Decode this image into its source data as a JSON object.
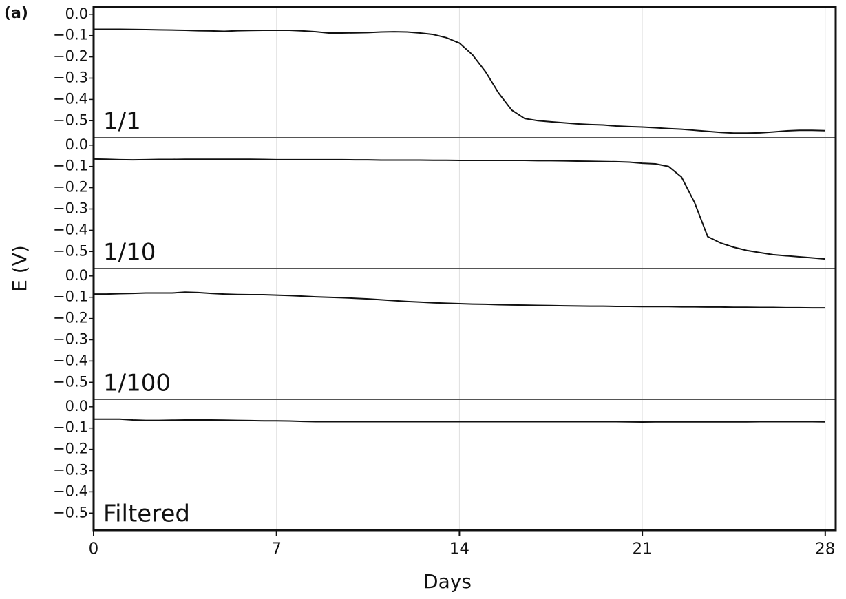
{
  "chart_data": {
    "type": "line",
    "title": "(a)",
    "xlabel": "Days",
    "ylabel": "E (V)",
    "xlim": [
      0,
      28.4
    ],
    "xticks": [
      0,
      7,
      14,
      21,
      28
    ],
    "ylim": [
      -0.58,
      0.035
    ],
    "yticks": [
      {
        "value": 0,
        "label": "0.0"
      },
      {
        "value": -0.1,
        "label": "−0.1"
      },
      {
        "value": -0.2,
        "label": "−0.2"
      },
      {
        "value": -0.3,
        "label": "−0.3"
      },
      {
        "value": -0.4,
        "label": "−0.4"
      },
      {
        "value": -0.5,
        "label": "−0.5"
      }
    ],
    "grid": true,
    "color": "#111111",
    "x": [
      0,
      0.5,
      1,
      1.5,
      2,
      2.5,
      3,
      3.5,
      4,
      4.5,
      5,
      5.5,
      6,
      6.5,
      7,
      7.5,
      8,
      8.5,
      9,
      9.5,
      10,
      10.5,
      11,
      11.5,
      12,
      12.5,
      13,
      13.5,
      14,
      14.5,
      15,
      15.5,
      16,
      16.5,
      17,
      17.5,
      18,
      18.5,
      19,
      19.5,
      20,
      20.5,
      21,
      21.5,
      22,
      22.5,
      23,
      23.5,
      24,
      24.5,
      25,
      25.5,
      26,
      26.5,
      27,
      27.5,
      28
    ],
    "panels": [
      {
        "label": "1/1",
        "values": [
          -0.07,
          -0.07,
          -0.07,
          -0.071,
          -0.072,
          -0.073,
          -0.074,
          -0.075,
          -0.077,
          -0.078,
          -0.08,
          -0.077,
          -0.076,
          -0.075,
          -0.075,
          -0.075,
          -0.078,
          -0.082,
          -0.088,
          -0.088,
          -0.087,
          -0.086,
          -0.083,
          -0.082,
          -0.083,
          -0.088,
          -0.095,
          -0.11,
          -0.135,
          -0.19,
          -0.27,
          -0.37,
          -0.45,
          -0.49,
          -0.5,
          -0.505,
          -0.51,
          -0.515,
          -0.518,
          -0.52,
          -0.525,
          -0.528,
          -0.53,
          -0.533,
          -0.537,
          -0.54,
          -0.545,
          -0.55,
          -0.555,
          -0.558,
          -0.558,
          -0.557,
          -0.553,
          -0.548,
          -0.545,
          -0.545,
          -0.547
        ]
      },
      {
        "label": "1/10",
        "values": [
          -0.065,
          -0.066,
          -0.068,
          -0.069,
          -0.068,
          -0.067,
          -0.067,
          -0.066,
          -0.066,
          -0.066,
          -0.066,
          -0.066,
          -0.066,
          -0.067,
          -0.068,
          -0.068,
          -0.068,
          -0.068,
          -0.068,
          -0.068,
          -0.069,
          -0.069,
          -0.07,
          -0.07,
          -0.07,
          -0.07,
          -0.071,
          -0.071,
          -0.072,
          -0.072,
          -0.072,
          -0.072,
          -0.072,
          -0.072,
          -0.073,
          -0.073,
          -0.074,
          -0.075,
          -0.076,
          -0.077,
          -0.078,
          -0.08,
          -0.085,
          -0.088,
          -0.1,
          -0.15,
          -0.27,
          -0.43,
          -0.46,
          -0.48,
          -0.495,
          -0.505,
          -0.515,
          -0.52,
          -0.525,
          -0.53,
          -0.535
        ]
      },
      {
        "label": "1/100",
        "values": [
          -0.085,
          -0.085,
          -0.083,
          -0.082,
          -0.08,
          -0.08,
          -0.08,
          -0.076,
          -0.078,
          -0.082,
          -0.085,
          -0.087,
          -0.088,
          -0.088,
          -0.09,
          -0.092,
          -0.095,
          -0.098,
          -0.1,
          -0.102,
          -0.105,
          -0.108,
          -0.112,
          -0.116,
          -0.12,
          -0.123,
          -0.126,
          -0.128,
          -0.13,
          -0.132,
          -0.133,
          -0.135,
          -0.136,
          -0.137,
          -0.138,
          -0.139,
          -0.14,
          -0.141,
          -0.142,
          -0.142,
          -0.143,
          -0.143,
          -0.144,
          -0.144,
          -0.144,
          -0.145,
          -0.145,
          -0.146,
          -0.146,
          -0.147,
          -0.147,
          -0.148,
          -0.148,
          -0.149,
          -0.149,
          -0.15,
          -0.15
        ]
      },
      {
        "label": "Filtered",
        "values": [
          -0.058,
          -0.058,
          -0.058,
          -0.062,
          -0.064,
          -0.064,
          -0.063,
          -0.062,
          -0.062,
          -0.062,
          -0.063,
          -0.064,
          -0.065,
          -0.066,
          -0.066,
          -0.067,
          -0.069,
          -0.07,
          -0.07,
          -0.07,
          -0.07,
          -0.07,
          -0.07,
          -0.07,
          -0.07,
          -0.07,
          -0.07,
          -0.07,
          -0.07,
          -0.07,
          -0.07,
          -0.07,
          -0.07,
          -0.07,
          -0.07,
          -0.07,
          -0.07,
          -0.07,
          -0.07,
          -0.07,
          -0.07,
          -0.071,
          -0.072,
          -0.071,
          -0.071,
          -0.071,
          -0.071,
          -0.071,
          -0.071,
          -0.071,
          -0.071,
          -0.07,
          -0.07,
          -0.07,
          -0.07,
          -0.07,
          -0.071
        ]
      }
    ]
  }
}
